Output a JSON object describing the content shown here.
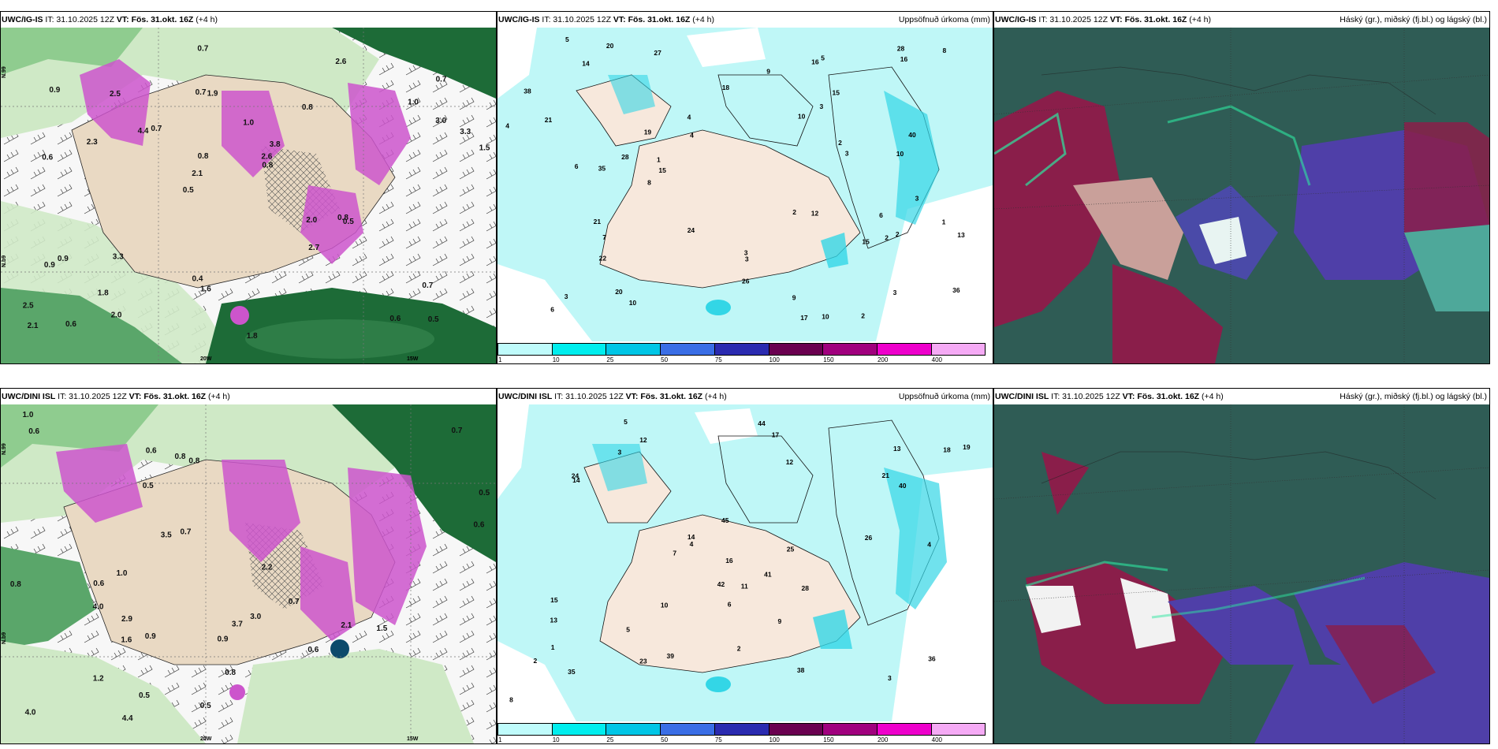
{
  "panels": [
    {
      "model": "UWC/IG-IS",
      "it": " IT: 31.10.2025 12Z ",
      "vt_label": "VT:",
      "vt": " Fös. 31.okt. 16Z",
      "lead": " (+4 h)",
      "right": ""
    },
    {
      "model": "UWC/IG-IS",
      "it": " IT: 31.10.2025 12Z ",
      "vt_label": "VT:",
      "vt": " Fös. 31.okt. 16Z",
      "lead": " (+4 h)",
      "right": "Uppsöfnuð úrkoma (mm)"
    },
    {
      "model": "UWC/IG-IS",
      "it": " IT: 31.10.2025 12Z ",
      "vt_label": "VT:",
      "vt": " Fös. 31.okt. 16Z",
      "lead": " (+4 h)",
      "right": "Háský (gr.), miðský (fj.bl.) og lágský (bl.)"
    },
    {
      "model": "UWC/DINI ISL",
      "it": " IT: 31.10.2025 12Z ",
      "vt_label": "VT:",
      "vt": " Fös. 31.okt. 16Z",
      "lead": " (+4 h)",
      "right": ""
    },
    {
      "model": "UWC/DINI ISL",
      "it": " IT: 31.10.2025 12Z ",
      "vt_label": "VT:",
      "vt": " Fös. 31.okt. 16Z",
      "lead": " (+4 h)",
      "right": "Uppsöfnuð úrkoma (mm)"
    },
    {
      "model": "UWC/DINI ISL",
      "it": " IT: 31.10.2025 12Z ",
      "vt_label": "VT:",
      "vt": " Fös. 31.okt. 16Z",
      "lead": " (+4 h)",
      "right": "Háský (gr.), miðský (fj.bl.) og lágský (bl.)"
    }
  ],
  "precip_colorbar": {
    "ticks": [
      "1",
      "10",
      "25",
      "50",
      "75",
      "100",
      "150",
      "200",
      "400"
    ],
    "colors": [
      "#bffbfb",
      "#00eeee",
      "#00c6e6",
      "#3a6ee6",
      "#2b2bb0",
      "#6a0050",
      "#a0007e",
      "#ee00cc",
      "#f5aaf5"
    ]
  },
  "panel1": {
    "axis_labels": [
      "N.99",
      "N.59",
      "N.b9",
      "20W",
      "15W",
      "23W"
    ],
    "values": [
      "0.5",
      "0.6",
      "0.7",
      "0.5",
      "0.8",
      "0.6",
      "0.7",
      "1.0",
      "0.9",
      "0.7",
      "2.5",
      "1.8",
      "1.9",
      "3.8",
      "0.5",
      "0.9",
      "0.7",
      "1.5",
      "2.0",
      "3.0",
      "2.1",
      "0.4",
      "0.8",
      "2.5",
      "2.6",
      "3.3",
      "0.6",
      "0.7",
      "0.8",
      "1.8",
      "4.4",
      "2.3",
      "2.7",
      "2.0",
      "3.3",
      "2.6",
      "2.1",
      "1.6",
      "0.8",
      "0.9",
      "1.0"
    ]
  },
  "panel2": {
    "values": [
      "1",
      "2",
      "3",
      "3",
      "3",
      "19",
      "27",
      "15",
      "17",
      "10",
      "12",
      "16",
      "4",
      "2",
      "10",
      "14",
      "22",
      "20",
      "16",
      "18",
      "21",
      "6",
      "3",
      "6",
      "8",
      "10",
      "15",
      "24",
      "21",
      "28",
      "26",
      "40",
      "36",
      "9",
      "13",
      "35",
      "38",
      "28",
      "15",
      "5",
      "2",
      "3",
      "7",
      "20",
      "9",
      "2",
      "4",
      "1",
      "5",
      "10",
      "8",
      "3",
      "4",
      "2",
      "6",
      "3"
    ]
  },
  "panel4": {
    "axis_labels": [
      "N.99",
      "N.59",
      "N.b9",
      "20W",
      "15W",
      "23W"
    ],
    "values": [
      "0.6",
      "1.0",
      "0.8",
      "0.7",
      "0.5",
      "0.6",
      "0.8",
      "0.9",
      "4.0",
      "2.1",
      "1.6",
      "2.2",
      "4.4",
      "4.0",
      "3.7",
      "3.5",
      "0.9",
      "1.2",
      "0.5",
      "0.7",
      "0.6",
      "0.8",
      "0.5",
      "1.0",
      "0.6",
      "3.0",
      "2.9",
      "1.5",
      "0.5",
      "0.8",
      "0.7",
      "0.6"
    ]
  },
  "panel5": {
    "values": [
      "3",
      "4",
      "4",
      "3",
      "13",
      "14",
      "25",
      "23",
      "10",
      "18",
      "21",
      "12",
      "24",
      "19",
      "39",
      "17",
      "35",
      "40",
      "44",
      "38",
      "15",
      "14",
      "26",
      "45",
      "42",
      "36",
      "5",
      "2",
      "7",
      "13",
      "41",
      "6",
      "2",
      "5",
      "9",
      "12",
      "11",
      "8",
      "16",
      "28",
      "1"
    ]
  }
}
